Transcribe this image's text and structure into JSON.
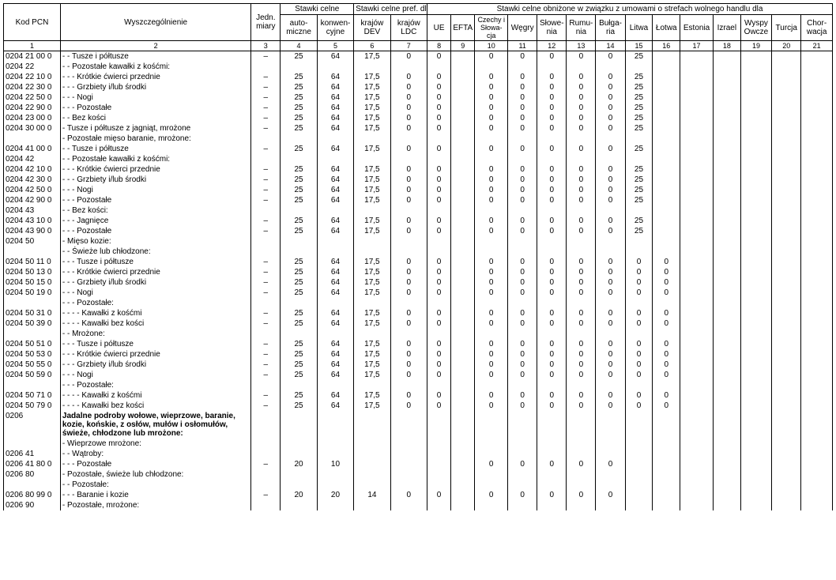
{
  "headers": {
    "kod": "Kod PCN",
    "desc": "Wyszczególnienie",
    "unit": "Jedn.\nmiary",
    "stawki": "Stawki celne",
    "auto": "auto-\nmiczne",
    "konw": "konwen-\ncyjne",
    "pref": "Stawki celne pref. dla",
    "dev": "krajów\nDEV",
    "ldc": "krajów\nLDC",
    "trade": "Stawki celne obniżone w związku z umowami o strefach wolnego handlu dla",
    "c8": "UE",
    "c9": "EFTA",
    "c10": "Czechy\ni\nSłowa-\ncja",
    "c11": "Węgry",
    "c12": "Słowe-\nnia",
    "c13": "Rumu-\nnia",
    "c14": "Bułga-\nria",
    "c15": "Litwa",
    "c16": "Łotwa",
    "c17": "Estonia",
    "c18": "Izrael",
    "c19": "Wyspy\nOwcze",
    "c20": "Turcja",
    "c21": "Chor-\nwacja"
  },
  "colnums": [
    "1",
    "2",
    "3",
    "4",
    "5",
    "6",
    "7",
    "8",
    "9",
    "10",
    "11",
    "12",
    "13",
    "14",
    "15",
    "16",
    "17",
    "18",
    "19",
    "20",
    "21"
  ],
  "rows": [
    {
      "code": "0204 21 00 0",
      "desc": "- - Tusze i półtusze",
      "u": "–",
      "v4": "25",
      "v5": "64",
      "v6": "17,5",
      "v7": "0",
      "v8": "0",
      "v10": "0",
      "v11": "0",
      "v12": "0",
      "v13": "0",
      "v14": "0",
      "v15": "25"
    },
    {
      "code": "0204 22",
      "desc": "- - Pozostałe kawałki z kośćmi:"
    },
    {
      "code": "0204 22 10 0",
      "desc": "- - - Krótkie ćwierci przednie",
      "u": "–",
      "v4": "25",
      "v5": "64",
      "v6": "17,5",
      "v7": "0",
      "v8": "0",
      "v10": "0",
      "v11": "0",
      "v12": "0",
      "v13": "0",
      "v14": "0",
      "v15": "25"
    },
    {
      "code": "0204 22 30 0",
      "desc": "- - - Grzbiety i/lub środki",
      "u": "–",
      "v4": "25",
      "v5": "64",
      "v6": "17,5",
      "v7": "0",
      "v8": "0",
      "v10": "0",
      "v11": "0",
      "v12": "0",
      "v13": "0",
      "v14": "0",
      "v15": "25"
    },
    {
      "code": "0204 22 50 0",
      "desc": "- - - Nogi",
      "u": "–",
      "v4": "25",
      "v5": "64",
      "v6": "17,5",
      "v7": "0",
      "v8": "0",
      "v10": "0",
      "v11": "0",
      "v12": "0",
      "v13": "0",
      "v14": "0",
      "v15": "25"
    },
    {
      "code": "0204 22 90 0",
      "desc": "- - - Pozostałe",
      "u": "–",
      "v4": "25",
      "v5": "64",
      "v6": "17,5",
      "v7": "0",
      "v8": "0",
      "v10": "0",
      "v11": "0",
      "v12": "0",
      "v13": "0",
      "v14": "0",
      "v15": "25"
    },
    {
      "code": "0204 23 00 0",
      "desc": "- - Bez kości",
      "u": "–",
      "v4": "25",
      "v5": "64",
      "v6": "17,5",
      "v7": "0",
      "v8": "0",
      "v10": "0",
      "v11": "0",
      "v12": "0",
      "v13": "0",
      "v14": "0",
      "v15": "25"
    },
    {
      "code": "0204 30 00 0",
      "desc": "- Tusze i półtusze z jagniąt, mrożone",
      "u": "–",
      "v4": "25",
      "v5": "64",
      "v6": "17,5",
      "v7": "0",
      "v8": "0",
      "v10": "0",
      "v11": "0",
      "v12": "0",
      "v13": "0",
      "v14": "0",
      "v15": "25"
    },
    {
      "code": "",
      "desc": "- Pozostałe mięso baranie, mrożone:"
    },
    {
      "code": "0204 41 00 0",
      "desc": "- - Tusze i półtusze",
      "u": "–",
      "v4": "25",
      "v5": "64",
      "v6": "17,5",
      "v7": "0",
      "v8": "0",
      "v10": "0",
      "v11": "0",
      "v12": "0",
      "v13": "0",
      "v14": "0",
      "v15": "25"
    },
    {
      "code": "0204 42",
      "desc": "- - Pozostałe kawałki z kośćmi:"
    },
    {
      "code": "0204 42 10 0",
      "desc": "- - - Krótkie ćwierci przednie",
      "u": "–",
      "v4": "25",
      "v5": "64",
      "v6": "17,5",
      "v7": "0",
      "v8": "0",
      "v10": "0",
      "v11": "0",
      "v12": "0",
      "v13": "0",
      "v14": "0",
      "v15": "25"
    },
    {
      "code": "0204 42 30 0",
      "desc": "- - - Grzbiety i/lub środki",
      "u": "–",
      "v4": "25",
      "v5": "64",
      "v6": "17,5",
      "v7": "0",
      "v8": "0",
      "v10": "0",
      "v11": "0",
      "v12": "0",
      "v13": "0",
      "v14": "0",
      "v15": "25"
    },
    {
      "code": "0204 42 50 0",
      "desc": "- - - Nogi",
      "u": "–",
      "v4": "25",
      "v5": "64",
      "v6": "17,5",
      "v7": "0",
      "v8": "0",
      "v10": "0",
      "v11": "0",
      "v12": "0",
      "v13": "0",
      "v14": "0",
      "v15": "25"
    },
    {
      "code": "0204 42 90 0",
      "desc": "- - - Pozostałe",
      "u": "–",
      "v4": "25",
      "v5": "64",
      "v6": "17,5",
      "v7": "0",
      "v8": "0",
      "v10": "0",
      "v11": "0",
      "v12": "0",
      "v13": "0",
      "v14": "0",
      "v15": "25"
    },
    {
      "code": "0204 43",
      "desc": "- - Bez kości:"
    },
    {
      "code": "0204 43 10 0",
      "desc": "- - - Jagnięce",
      "u": "–",
      "v4": "25",
      "v5": "64",
      "v6": "17,5",
      "v7": "0",
      "v8": "0",
      "v10": "0",
      "v11": "0",
      "v12": "0",
      "v13": "0",
      "v14": "0",
      "v15": "25"
    },
    {
      "code": "0204 43 90 0",
      "desc": "- - - Pozostałe",
      "u": "–",
      "v4": "25",
      "v5": "64",
      "v6": "17,5",
      "v7": "0",
      "v8": "0",
      "v10": "0",
      "v11": "0",
      "v12": "0",
      "v13": "0",
      "v14": "0",
      "v15": "25"
    },
    {
      "code": "0204 50",
      "desc": "- Mięso kozie:"
    },
    {
      "code": "",
      "desc": "- - Świeże lub chłodzone:"
    },
    {
      "code": "0204 50 11 0",
      "desc": "- - - Tusze i półtusze",
      "u": "–",
      "v4": "25",
      "v5": "64",
      "v6": "17,5",
      "v7": "0",
      "v8": "0",
      "v10": "0",
      "v11": "0",
      "v12": "0",
      "v13": "0",
      "v14": "0",
      "v15": "0",
      "v16": "0"
    },
    {
      "code": "0204 50 13 0",
      "desc": "- - - Krótkie ćwierci przednie",
      "u": "–",
      "v4": "25",
      "v5": "64",
      "v6": "17,5",
      "v7": "0",
      "v8": "0",
      "v10": "0",
      "v11": "0",
      "v12": "0",
      "v13": "0",
      "v14": "0",
      "v15": "0",
      "v16": "0"
    },
    {
      "code": "0204 50 15 0",
      "desc": "- - - Grzbiety i/lub środki",
      "u": "–",
      "v4": "25",
      "v5": "64",
      "v6": "17,5",
      "v7": "0",
      "v8": "0",
      "v10": "0",
      "v11": "0",
      "v12": "0",
      "v13": "0",
      "v14": "0",
      "v15": "0",
      "v16": "0"
    },
    {
      "code": "0204 50 19 0",
      "desc": "- - - Nogi",
      "u": "–",
      "v4": "25",
      "v5": "64",
      "v6": "17,5",
      "v7": "0",
      "v8": "0",
      "v10": "0",
      "v11": "0",
      "v12": "0",
      "v13": "0",
      "v14": "0",
      "v15": "0",
      "v16": "0"
    },
    {
      "code": "",
      "desc": "- - - Pozostałe:"
    },
    {
      "code": "0204 50 31 0",
      "desc": "- - - - Kawałki z kośćmi",
      "u": "–",
      "v4": "25",
      "v5": "64",
      "v6": "17,5",
      "v7": "0",
      "v8": "0",
      "v10": "0",
      "v11": "0",
      "v12": "0",
      "v13": "0",
      "v14": "0",
      "v15": "0",
      "v16": "0"
    },
    {
      "code": "0204 50 39 0",
      "desc": "- - - - Kawałki bez kości",
      "u": "–",
      "v4": "25",
      "v5": "64",
      "v6": "17,5",
      "v7": "0",
      "v8": "0",
      "v10": "0",
      "v11": "0",
      "v12": "0",
      "v13": "0",
      "v14": "0",
      "v15": "0",
      "v16": "0"
    },
    {
      "code": "",
      "desc": "- - Mrożone:"
    },
    {
      "code": "0204 50 51 0",
      "desc": "- - - Tusze i półtusze",
      "u": "–",
      "v4": "25",
      "v5": "64",
      "v6": "17,5",
      "v7": "0",
      "v8": "0",
      "v10": "0",
      "v11": "0",
      "v12": "0",
      "v13": "0",
      "v14": "0",
      "v15": "0",
      "v16": "0"
    },
    {
      "code": "0204 50 53 0",
      "desc": "- - - Krótkie ćwierci przednie",
      "u": "–",
      "v4": "25",
      "v5": "64",
      "v6": "17,5",
      "v7": "0",
      "v8": "0",
      "v10": "0",
      "v11": "0",
      "v12": "0",
      "v13": "0",
      "v14": "0",
      "v15": "0",
      "v16": "0"
    },
    {
      "code": "0204 50 55 0",
      "desc": "- - - Grzbiety i/lub środki",
      "u": "–",
      "v4": "25",
      "v5": "64",
      "v6": "17,5",
      "v7": "0",
      "v8": "0",
      "v10": "0",
      "v11": "0",
      "v12": "0",
      "v13": "0",
      "v14": "0",
      "v15": "0",
      "v16": "0"
    },
    {
      "code": "0204 50 59 0",
      "desc": "- - - Nogi",
      "u": "–",
      "v4": "25",
      "v5": "64",
      "v6": "17,5",
      "v7": "0",
      "v8": "0",
      "v10": "0",
      "v11": "0",
      "v12": "0",
      "v13": "0",
      "v14": "0",
      "v15": "0",
      "v16": "0"
    },
    {
      "code": "",
      "desc": "- - - Pozostałe:"
    },
    {
      "code": "0204 50 71 0",
      "desc": "- - - - Kawałki z kośćmi",
      "u": "–",
      "v4": "25",
      "v5": "64",
      "v6": "17,5",
      "v7": "0",
      "v8": "0",
      "v10": "0",
      "v11": "0",
      "v12": "0",
      "v13": "0",
      "v14": "0",
      "v15": "0",
      "v16": "0"
    },
    {
      "code": "0204 50 79 0",
      "desc": "- - - - Kawałki bez kości",
      "u": "–",
      "v4": "25",
      "v5": "64",
      "v6": "17,5",
      "v7": "0",
      "v8": "0",
      "v10": "0",
      "v11": "0",
      "v12": "0",
      "v13": "0",
      "v14": "0",
      "v15": "0",
      "v16": "0"
    },
    {
      "code": "0206",
      "desc": "Jadalne podroby wołowe, wieprzowe, baranie, kozie, końskie, z osłów, mułów i osłomułów, świeże, chłodzone lub mrożone:",
      "bold": true
    },
    {
      "code": "",
      "desc": "- Wieprzowe mrożone:"
    },
    {
      "code": "0206 41",
      "desc": "- - Wątroby:"
    },
    {
      "code": "0206 41 80 0",
      "desc": "- - - Pozostałe",
      "u": "–",
      "v4": "20",
      "v5": "10",
      "v10": "0",
      "v11": "0",
      "v12": "0",
      "v13": "0",
      "v14": "0"
    },
    {
      "code": "0206 80",
      "desc": "- Pozostałe, świeże lub chłodzone:"
    },
    {
      "code": "",
      "desc": "- - Pozostałe:"
    },
    {
      "code": "0206 80 99 0",
      "desc": "- - - Baranie i kozie",
      "u": "–",
      "v4": "20",
      "v5": "20",
      "v6": "14",
      "v7": "0",
      "v8": "0",
      "v10": "0",
      "v11": "0",
      "v12": "0",
      "v13": "0",
      "v14": "0"
    },
    {
      "code": "0206 90",
      "desc": "- Pozostałe, mrożone:"
    }
  ]
}
